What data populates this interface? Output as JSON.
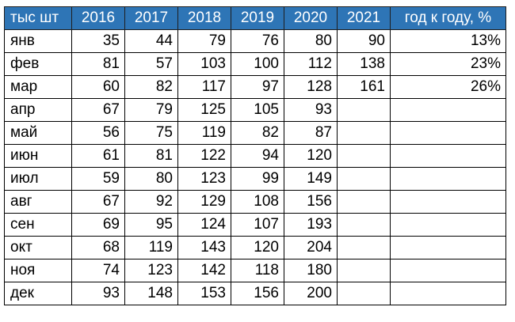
{
  "table": {
    "corner_label": "тыс шт",
    "headers": [
      "2016",
      "2017",
      "2018",
      "2019",
      "2020",
      "2021",
      "год к году, %"
    ],
    "rows": [
      {
        "month": "янв",
        "values": [
          "35",
          "44",
          "79",
          "76",
          "80",
          "90",
          "13%"
        ]
      },
      {
        "month": "фев",
        "values": [
          "81",
          "57",
          "103",
          "100",
          "112",
          "138",
          "23%"
        ]
      },
      {
        "month": "мар",
        "values": [
          "60",
          "82",
          "117",
          "97",
          "128",
          "161",
          "26%"
        ]
      },
      {
        "month": "апр",
        "values": [
          "67",
          "79",
          "125",
          "105",
          "93",
          "",
          ""
        ]
      },
      {
        "month": "май",
        "values": [
          "56",
          "75",
          "119",
          "82",
          "87",
          "",
          ""
        ]
      },
      {
        "month": "июн",
        "values": [
          "61",
          "81",
          "122",
          "94",
          "120",
          "",
          ""
        ]
      },
      {
        "month": "июл",
        "values": [
          "59",
          "80",
          "123",
          "99",
          "149",
          "",
          ""
        ]
      },
      {
        "month": "авг",
        "values": [
          "67",
          "92",
          "129",
          "108",
          "156",
          "",
          ""
        ]
      },
      {
        "month": "сен",
        "values": [
          "69",
          "95",
          "124",
          "107",
          "193",
          "",
          ""
        ]
      },
      {
        "month": "окт",
        "values": [
          "68",
          "119",
          "143",
          "120",
          "204",
          "",
          ""
        ]
      },
      {
        "month": "ноя",
        "values": [
          "74",
          "123",
          "142",
          "118",
          "180",
          "",
          ""
        ]
      },
      {
        "month": "дек",
        "values": [
          "93",
          "148",
          "153",
          "156",
          "200",
          "",
          ""
        ]
      }
    ]
  },
  "colors": {
    "header_bg": "#2e75b6",
    "header_text": "#ffffff",
    "grid": "#000000"
  }
}
